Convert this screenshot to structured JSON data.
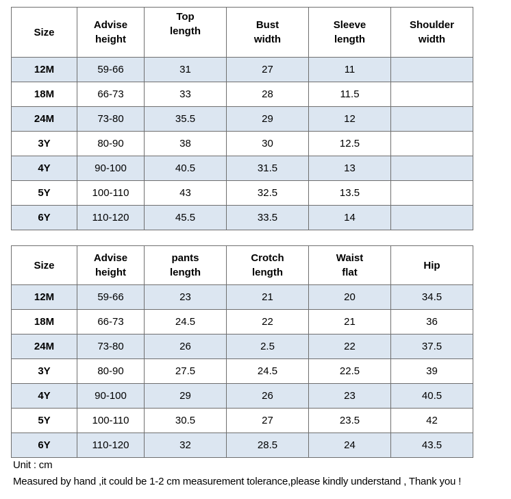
{
  "top_table": {
    "headers": [
      "Size",
      "Advise height",
      "Top length",
      "Bust width",
      "Sleeve length",
      "Shoulder width"
    ],
    "header_lines": [
      [
        "Size"
      ],
      [
        "Advise",
        "height"
      ],
      [
        "Top",
        "length"
      ],
      [
        "Bust",
        "width"
      ],
      [
        "Sleeve",
        "length"
      ],
      [
        "Shoulder",
        "width"
      ]
    ],
    "rows": [
      [
        "12M",
        "59-66",
        "31",
        "27",
        "11",
        ""
      ],
      [
        "18M",
        "66-73",
        "33",
        "28",
        "11.5",
        ""
      ],
      [
        "24M",
        "73-80",
        "35.5",
        "29",
        "12",
        ""
      ],
      [
        "3Y",
        "80-90",
        "38",
        "30",
        "12.5",
        ""
      ],
      [
        "4Y",
        "90-100",
        "40.5",
        "31.5",
        "13",
        ""
      ],
      [
        "5Y",
        "100-110",
        "43",
        "32.5",
        "13.5",
        ""
      ],
      [
        "6Y",
        "110-120",
        "45.5",
        "33.5",
        "14",
        ""
      ]
    ]
  },
  "bottom_table": {
    "headers": [
      "Size",
      "Advise height",
      "pants length",
      "Crotch length",
      "Waist flat",
      "Hip"
    ],
    "header_lines": [
      [
        "Size"
      ],
      [
        "Advise",
        "height"
      ],
      [
        "pants",
        "length"
      ],
      [
        "Crotch",
        "length"
      ],
      [
        "Waist",
        "flat"
      ],
      [
        "Hip"
      ]
    ],
    "rows": [
      [
        "12M",
        "59-66",
        "23",
        "21",
        "20",
        "34.5"
      ],
      [
        "18M",
        "66-73",
        "24.5",
        "22",
        "21",
        "36"
      ],
      [
        "24M",
        "73-80",
        "26",
        "2.5",
        "22",
        "37.5"
      ],
      [
        "3Y",
        "80-90",
        "27.5",
        "24.5",
        "22.5",
        "39"
      ],
      [
        "4Y",
        "90-100",
        "29",
        "26",
        "23",
        "40.5"
      ],
      [
        "5Y",
        "100-110",
        "30.5",
        "27",
        "23.5",
        "42"
      ],
      [
        "6Y",
        "110-120",
        "32",
        "28.5",
        "24",
        "43.5"
      ]
    ]
  },
  "notes": {
    "unit": "Unit : cm",
    "tolerance": "Measured by hand ,it could be 1-2 cm measurement tolerance,please kindly understand , Thank you !"
  },
  "colors": {
    "shaded_row": "#dce6f1",
    "border": "#6e6e6e"
  }
}
